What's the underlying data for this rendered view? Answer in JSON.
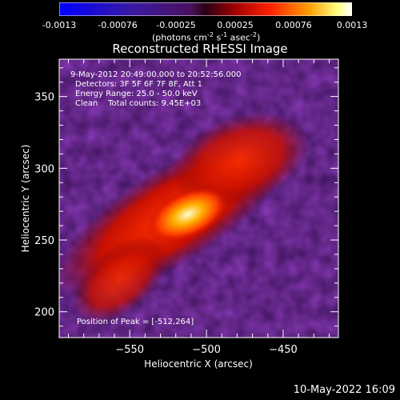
{
  "colorbar": {
    "ticks": [
      "-0.0013",
      "-0.00076",
      "-0.00025",
      "0.00025",
      "0.00076",
      "0.0013"
    ],
    "unit": "(photons cm",
    "unit_exp1": "-2",
    "unit_mid": " s",
    "unit_exp2": "-1",
    "unit_mid2": " asec",
    "unit_exp3": "-2",
    "unit_end": ")"
  },
  "chart_data": {
    "type": "heatmap",
    "title": "Reconstructed RHESSI Image",
    "xlabel": "Heliocentric X (arcsec)",
    "ylabel": "Heliocentric Y (arcsec)",
    "xlim": [
      -596,
      -414
    ],
    "ylim": [
      182,
      376
    ],
    "xticks": [
      -550,
      -500,
      -450
    ],
    "yticks": [
      200,
      250,
      300,
      350
    ],
    "colormap": "RHESSI red-temperature (blue→purple→red→orange→yellow→white)",
    "color_range": [
      -0.0013,
      0.0013
    ],
    "peak": [
      -512,
      264
    ]
  },
  "annotations": {
    "time_range": "9-May-2012 20:49:00.000 to 20:52:56.000",
    "detectors": "Detectors: 3F 5F 6F 7F 8F, Att 1",
    "energy": "Energy Range: 25.0 - 50.0 keV",
    "clean": "Clean    Total counts: 9.45E+03",
    "peak_label": "Position of Peak = [-512,264]"
  },
  "timestamp": "10-May-2022 16:09",
  "colors": {
    "background": "#000000",
    "text": "#ffffff"
  }
}
